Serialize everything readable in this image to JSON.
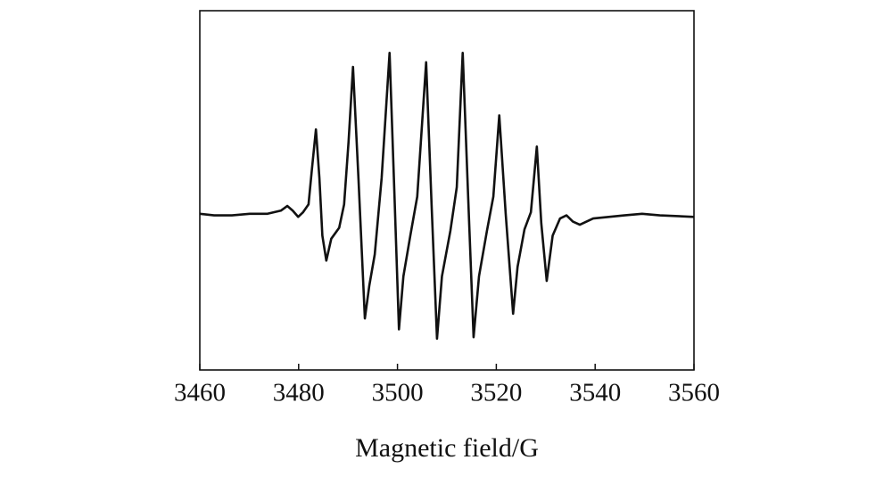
{
  "chart_data": {
    "type": "line",
    "xlabel": "Magnetic field/G",
    "x": [
      3460,
      3462.9,
      3466.5,
      3470.1,
      3473.7,
      3476.4,
      3477.7,
      3478.8,
      3479.9,
      3480.9,
      3482.0,
      3482.7,
      3483.5,
      3484.2,
      3484.8,
      3485.6,
      3486.6,
      3488.2,
      3489.2,
      3490.1,
      3491.0,
      3492.1,
      3493.4,
      3494.3,
      3495.4,
      3496.8,
      3498.4,
      3499.4,
      3500.3,
      3501.2,
      3502.6,
      3504.0,
      3505.8,
      3506.9,
      3508.0,
      3509.0,
      3510.7,
      3512.0,
      3513.2,
      3514.3,
      3515.4,
      3516.5,
      3518.1,
      3519.4,
      3520.6,
      3521.9,
      3523.4,
      3524.3,
      3525.7,
      3527.0,
      3528.2,
      3529.1,
      3530.2,
      3531.4,
      3532.9,
      3534.2,
      3535.5,
      3536.9,
      3539.6,
      3545.9,
      3549.5,
      3553.1,
      3560
    ],
    "series": [
      {
        "color": "#111111",
        "values": [
          0,
          -0.01,
          -0.01,
          0,
          0,
          0.02,
          0.05,
          0.02,
          -0.02,
          0.01,
          0.06,
          0.29,
          0.54,
          0.23,
          -0.14,
          -0.3,
          -0.16,
          -0.09,
          0.06,
          0.46,
          0.94,
          0.23,
          -0.67,
          -0.46,
          -0.26,
          0.23,
          1.03,
          0.11,
          -0.74,
          -0.4,
          -0.14,
          0.11,
          0.97,
          0.06,
          -0.8,
          -0.4,
          -0.11,
          0.17,
          1.03,
          0.11,
          -0.79,
          -0.4,
          -0.11,
          0.11,
          0.63,
          0,
          -0.64,
          -0.34,
          -0.1,
          0.01,
          0.43,
          -0.06,
          -0.43,
          -0.14,
          -0.03,
          -0.01,
          -0.05,
          -0.07,
          -0.03,
          -0.01,
          0,
          -0.01,
          -0.02
        ]
      }
    ],
    "xlim": [
      3460,
      3560
    ],
    "xticks": [
      3460,
      3480,
      3500,
      3520,
      3540,
      3560
    ],
    "ylim": [
      -1,
      1.3
    ]
  }
}
